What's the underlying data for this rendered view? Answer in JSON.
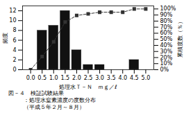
{
  "chart_data": {
    "type": "bar",
    "x": [
      0.0,
      0.5,
      1.0,
      1.5,
      2.0,
      2.5,
      3.0,
      3.5,
      4.0,
      4.5,
      5.0
    ],
    "series": [
      {
        "type": "bar",
        "color": "#111111",
        "values": [
          0,
          8,
          9,
          12,
          4,
          1,
          1,
          0,
          0,
          2,
          0
        ]
      },
      {
        "type": "line",
        "axis": "y2",
        "color": "#333333",
        "marker": "square",
        "line_style": "dashed",
        "values": [
          0,
          21.6,
          45.9,
          78.4,
          89.2,
          91.9,
          94.6,
          94.6,
          94.6,
          100.0,
          100.0
        ]
      }
    ],
    "xlabel": "処理水Ｔ－Ｎ　ｍｇ／ℓ",
    "ylabel": "頻度",
    "y2label": "累積度数（％）",
    "xlim": [
      -0.35,
      5.35
    ],
    "xticks": [
      {
        "value": 0,
        "label": "0.0"
      },
      0.5,
      {
        "value": 1,
        "label": "1.0"
      },
      1.5,
      {
        "value": 2,
        "label": "2.0"
      },
      2.5,
      {
        "value": 3,
        "label": "3.0"
      },
      3.5,
      {
        "value": 4,
        "label": "4.0"
      },
      4.5,
      {
        "value": 5,
        "label": "5.0"
      }
    ],
    "ylim": [
      0,
      13
    ],
    "yticks": [
      0,
      2,
      4,
      6,
      8,
      10,
      12
    ],
    "y2lim": [
      0,
      105
    ],
    "y2ticks": [
      {
        "value": 0,
        "label": "0%"
      },
      {
        "value": 10,
        "label": "10%"
      },
      {
        "value": 20,
        "label": "20%"
      },
      {
        "value": 30,
        "label": "30%"
      },
      {
        "value": 40,
        "label": "40%"
      },
      {
        "value": 50,
        "label": "50%"
      },
      {
        "value": 60,
        "label": "60%"
      },
      {
        "value": 70,
        "label": "70%"
      },
      {
        "value": 80,
        "label": "80%"
      },
      {
        "value": 90,
        "label": "90%"
      },
      {
        "value": 100,
        "label": "100%"
      }
    ],
    "grid": false,
    "annotations": [
      "図－４　検証試験結果",
      "　：処理水窒素濃度の度数分布",
      "（平成５年２月～８月）"
    ]
  }
}
